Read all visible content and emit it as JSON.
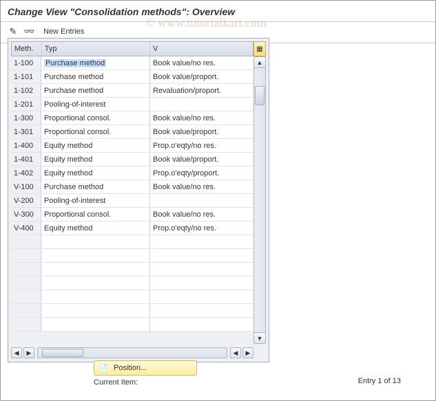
{
  "title": "Change View \"Consolidation methods\": Overview",
  "toolbar": {
    "pencil_icon": "✎",
    "glasses_icon": "👓",
    "new_entries_label": "New Entries"
  },
  "watermark": "© www.tutorialkart.com",
  "table": {
    "columns": {
      "meth": "Meth.",
      "typ": "Typ",
      "v": "V"
    },
    "rows": [
      {
        "meth": "1-100",
        "typ": "Purchase method",
        "v": "Book value/no res.",
        "selected": true
      },
      {
        "meth": "1-101",
        "typ": "Purchase method",
        "v": "Book value/proport."
      },
      {
        "meth": "1-102",
        "typ": "Purchase method",
        "v": "Revaluation/proport."
      },
      {
        "meth": "1-201",
        "typ": "Pooling-of-interest",
        "v": ""
      },
      {
        "meth": "1-300",
        "typ": "Proportional consol.",
        "v": "Book value/no res."
      },
      {
        "meth": "1-301",
        "typ": "Proportional consol.",
        "v": "Book value/proport."
      },
      {
        "meth": "1-400",
        "typ": "Equity method",
        "v": "Prop.o'eqty/no res."
      },
      {
        "meth": "1-401",
        "typ": "Equity method",
        "v": "Book value/proport."
      },
      {
        "meth": "1-402",
        "typ": "Equity method",
        "v": "Prop.o'eqty/proport."
      },
      {
        "meth": "V-100",
        "typ": "Purchase method",
        "v": "Book value/no res."
      },
      {
        "meth": "V-200",
        "typ": "Pooling-of-interest",
        "v": ""
      },
      {
        "meth": "V-300",
        "typ": "Proportional consol.",
        "v": "Book value/no res."
      },
      {
        "meth": "V-400",
        "typ": "Equity method",
        "v": "Prop.o'eqty/no res."
      }
    ],
    "empty_rows": 7,
    "settings_icon": "▦"
  },
  "footer": {
    "position_label": "Position...",
    "position_icon": "📄",
    "current_item_label": "Current Item:",
    "entry_text": "Entry 1 of 13"
  },
  "colors": {
    "title_text": "#333333",
    "window_bg": "#ffffff",
    "panel_bg": "#eef0f4",
    "header_grad_top": "#e9ecf2",
    "header_grad_bot": "#d8dde7",
    "border": "#a9b3c4",
    "selection_bg": "#c8dffb",
    "position_btn_top": "#fff9dd",
    "position_btn_bot": "#fdeea1",
    "position_btn_border": "#c9b76a"
  }
}
